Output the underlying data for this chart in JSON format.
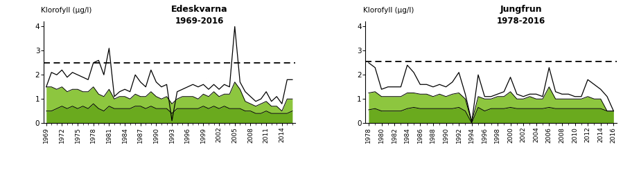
{
  "panel1": {
    "title": "Edeskvarna",
    "subtitle": "1969-2016",
    "years": [
      1969,
      1970,
      1971,
      1972,
      1973,
      1974,
      1975,
      1976,
      1977,
      1978,
      1979,
      1980,
      1981,
      1982,
      1983,
      1984,
      1985,
      1986,
      1987,
      1988,
      1989,
      1990,
      1991,
      1992,
      1993,
      1994,
      1995,
      1996,
      1997,
      1998,
      1999,
      2000,
      2001,
      2002,
      2003,
      2004,
      2005,
      2006,
      2007,
      2008,
      2009,
      2010,
      2011,
      2012,
      2013,
      2014,
      2015,
      2016
    ],
    "upper": [
      1.5,
      2.1,
      2.0,
      2.2,
      1.9,
      2.1,
      2.0,
      1.9,
      1.8,
      2.5,
      2.6,
      2.0,
      3.1,
      1.1,
      1.3,
      1.4,
      1.3,
      2.0,
      1.7,
      1.5,
      2.2,
      1.7,
      1.5,
      1.6,
      0.1,
      1.3,
      1.4,
      1.5,
      1.6,
      1.5,
      1.6,
      1.4,
      1.6,
      1.4,
      1.6,
      1.5,
      4.0,
      1.7,
      1.3,
      1.1,
      0.9,
      1.0,
      1.3,
      0.9,
      1.1,
      0.8,
      1.8,
      1.8
    ],
    "q75": [
      1.5,
      1.5,
      1.4,
      1.5,
      1.3,
      1.4,
      1.4,
      1.3,
      1.3,
      1.5,
      1.2,
      1.1,
      1.4,
      1.0,
      1.1,
      1.1,
      1.0,
      1.2,
      1.1,
      1.1,
      1.3,
      1.1,
      1.0,
      1.1,
      0.8,
      1.0,
      1.1,
      1.1,
      1.1,
      1.0,
      1.2,
      1.1,
      1.3,
      1.1,
      1.2,
      1.2,
      1.7,
      1.4,
      0.9,
      0.8,
      0.7,
      0.8,
      0.9,
      0.7,
      0.7,
      0.5,
      1.0,
      1.0
    ],
    "q25": [
      0.5,
      0.5,
      0.6,
      0.7,
      0.6,
      0.7,
      0.6,
      0.7,
      0.6,
      0.8,
      0.6,
      0.5,
      0.7,
      0.6,
      0.6,
      0.6,
      0.6,
      0.7,
      0.7,
      0.6,
      0.7,
      0.6,
      0.6,
      0.6,
      0.4,
      0.6,
      0.6,
      0.6,
      0.6,
      0.6,
      0.7,
      0.6,
      0.7,
      0.6,
      0.7,
      0.6,
      0.6,
      0.6,
      0.5,
      0.5,
      0.4,
      0.4,
      0.5,
      0.4,
      0.4,
      0.4,
      0.4,
      0.5
    ],
    "xtick_years": [
      1969,
      1972,
      1975,
      1978,
      1981,
      1984,
      1987,
      1990,
      1993,
      1996,
      1999,
      2002,
      2005,
      2008,
      2011,
      2014
    ],
    "dashed_y": 2.5,
    "ylim": [
      0,
      4.2
    ],
    "ylabel": "Klorofyll (µg/l)"
  },
  "panel2": {
    "title": "Jungfrun",
    "subtitle": "1978-2016",
    "years": [
      1978,
      1979,
      1980,
      1981,
      1982,
      1983,
      1984,
      1985,
      1986,
      1987,
      1988,
      1989,
      1990,
      1991,
      1992,
      1993,
      1994,
      1995,
      1996,
      1997,
      1998,
      1999,
      2000,
      2001,
      2002,
      2003,
      2004,
      2005,
      2006,
      2007,
      2008,
      2009,
      2010,
      2011,
      2012,
      2013,
      2014,
      2015,
      2016
    ],
    "upper": [
      2.5,
      2.3,
      1.4,
      1.5,
      1.5,
      1.5,
      2.4,
      2.1,
      1.6,
      1.6,
      1.5,
      1.6,
      1.5,
      1.7,
      2.1,
      1.2,
      0.05,
      2.0,
      1.1,
      1.1,
      1.2,
      1.3,
      1.9,
      1.2,
      1.1,
      1.2,
      1.2,
      1.1,
      2.3,
      1.3,
      1.2,
      1.2,
      1.1,
      1.1,
      1.8,
      1.6,
      1.4,
      1.1,
      0.5
    ],
    "q75": [
      1.25,
      1.3,
      1.1,
      1.1,
      1.1,
      1.1,
      1.25,
      1.25,
      1.2,
      1.2,
      1.1,
      1.2,
      1.1,
      1.2,
      1.25,
      1.0,
      0.05,
      1.1,
      1.0,
      1.0,
      1.1,
      1.1,
      1.3,
      1.0,
      1.0,
      1.1,
      1.0,
      1.0,
      1.5,
      1.0,
      1.0,
      1.0,
      1.0,
      1.0,
      1.1,
      1.0,
      1.0,
      0.5,
      0.5
    ],
    "q25": [
      0.55,
      0.6,
      0.5,
      0.5,
      0.5,
      0.5,
      0.6,
      0.65,
      0.6,
      0.6,
      0.6,
      0.6,
      0.6,
      0.6,
      0.65,
      0.5,
      0.0,
      0.65,
      0.5,
      0.6,
      0.6,
      0.6,
      0.65,
      0.6,
      0.6,
      0.6,
      0.6,
      0.6,
      0.65,
      0.6,
      0.6,
      0.6,
      0.6,
      0.6,
      0.6,
      0.6,
      0.6,
      0.5,
      0.5
    ],
    "xtick_years": [
      1978,
      1980,
      1982,
      1984,
      1986,
      1988,
      1990,
      1992,
      1994,
      1996,
      1998,
      2000,
      2002,
      2004,
      2006,
      2008,
      2010,
      2012,
      2014,
      2016
    ],
    "dashed_y": 2.55,
    "ylim": [
      0,
      4.2
    ],
    "ylabel": "Klorofyll (µg/l)"
  },
  "fill_color_light": "#8dc63f",
  "fill_color_dark": "#6aaa1e",
  "line_color": "#000000",
  "bg_color": "#ffffff",
  "dashed_color": "#000000"
}
